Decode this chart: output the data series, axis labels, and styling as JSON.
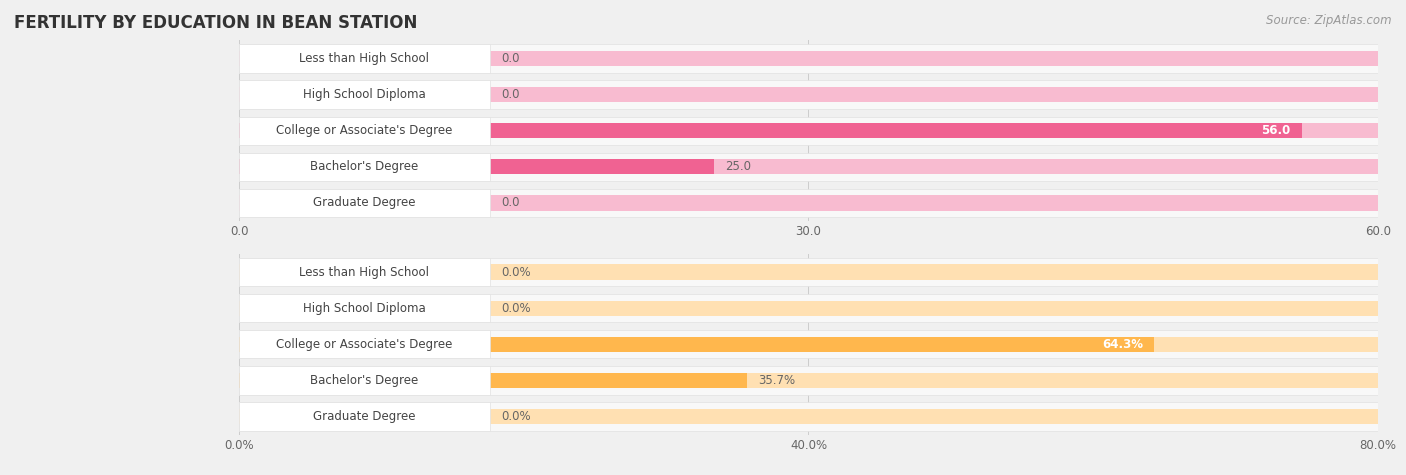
{
  "title": "FERTILITY BY EDUCATION IN BEAN STATION",
  "source": "Source: ZipAtlas.com",
  "background_color": "#f0f0f0",
  "top_chart": {
    "categories": [
      "Less than High School",
      "High School Diploma",
      "College or Associate's Degree",
      "Bachelor's Degree",
      "Graduate Degree"
    ],
    "values": [
      0.0,
      0.0,
      56.0,
      25.0,
      0.0
    ],
    "max_val": 60.0,
    "tick_vals": [
      0.0,
      30.0,
      60.0
    ],
    "tick_labels": [
      "0.0",
      "30.0",
      "60.0"
    ],
    "bar_color_main": "#f06292",
    "bar_color_zero": "#f8bbd0",
    "row_bg_color": "#f8f8f8",
    "row_border_color": "#e0e0e0",
    "label_bg_color": "#ffffff",
    "label_color": "#444444",
    "value_label_inside_color": "#ffffff",
    "value_label_outside_color": "#666666"
  },
  "bottom_chart": {
    "categories": [
      "Less than High School",
      "High School Diploma",
      "College or Associate's Degree",
      "Bachelor's Degree",
      "Graduate Degree"
    ],
    "values": [
      0.0,
      0.0,
      64.3,
      35.7,
      0.0
    ],
    "max_val": 80.0,
    "tick_vals": [
      0.0,
      40.0,
      80.0
    ],
    "tick_labels": [
      "0.0%",
      "40.0%",
      "80.0%"
    ],
    "bar_color_main": "#ffb74d",
    "bar_color_zero": "#ffe0b2",
    "row_bg_color": "#f8f8f8",
    "row_border_color": "#e0e0e0",
    "label_bg_color": "#ffffff",
    "label_color": "#444444",
    "value_label_inside_color": "#ffffff",
    "value_label_outside_color": "#666666",
    "value_suffix": "%"
  },
  "title_fontsize": 12,
  "label_fontsize": 8.5,
  "tick_fontsize": 8.5,
  "source_fontsize": 8.5
}
